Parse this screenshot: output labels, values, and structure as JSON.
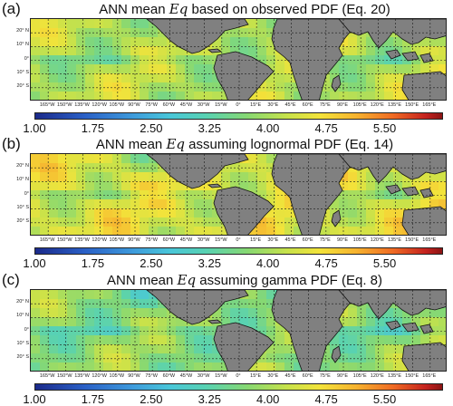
{
  "panels": [
    {
      "letter": "(a)",
      "title_pre": "ANN mean ",
      "title_var": "Eq",
      "title_post": "  based on observed PDF (Eq. 20)",
      "variant": "observed"
    },
    {
      "letter": "(b)",
      "title_pre": "ANN mean ",
      "title_var": "Eq",
      "title_post": "  assuming lognormal PDF (Eq. 14)",
      "variant": "lognormal"
    },
    {
      "letter": "(c)",
      "title_pre": "ANN mean ",
      "title_var": "Eq",
      "title_post": "  assuming gamma PDF (Eq. 8)",
      "variant": "gamma"
    }
  ],
  "lat_labels": [
    "20° N",
    "10° N",
    "0°",
    "10° S",
    "20° S"
  ],
  "lon_labels": [
    "165°W",
    "150°W",
    "135°W",
    "120°W",
    "105°W",
    "90°W",
    "75°W",
    "60°W",
    "45°W",
    "30°W",
    "15°W",
    "0°",
    "15°E",
    "30°E",
    "45°E",
    "60°E",
    "75°E",
    "90°E",
    "105°E",
    "120°E",
    "135°E",
    "150°E",
    "165°E"
  ],
  "colorbar": {
    "ticks": [
      "1.00",
      "1.75",
      "2.50",
      "3.25",
      "4.00",
      "4.75",
      "5.50"
    ],
    "min": 1.0,
    "max": 6.25
  },
  "colors": {
    "land": "#808080",
    "grid": "#1a1a1a"
  }
}
